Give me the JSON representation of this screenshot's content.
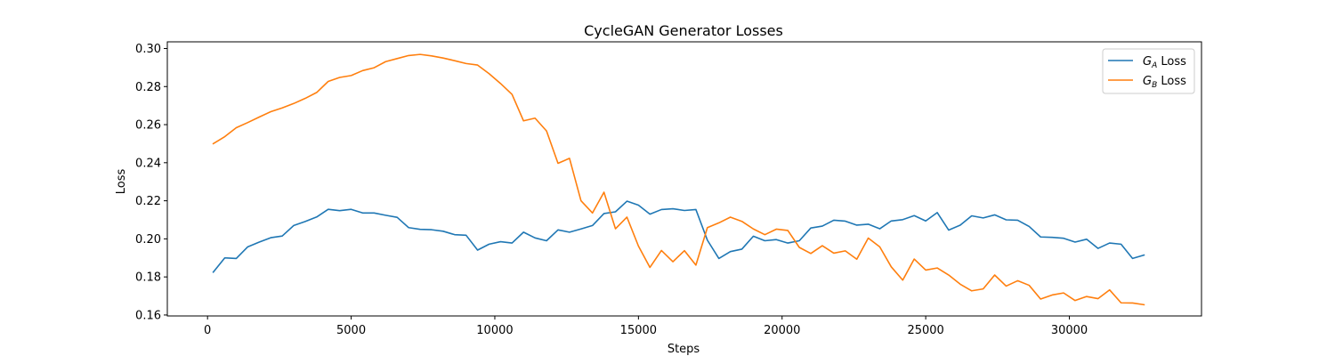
{
  "chart_data": {
    "type": "line",
    "title": "CycleGAN Generator Losses",
    "xlabel": "Steps",
    "ylabel": "Loss",
    "xlim": [
      -1400,
      34600
    ],
    "ylim": [
      0.1595,
      0.3035
    ],
    "xticks": [
      0,
      5000,
      10000,
      15000,
      20000,
      25000,
      30000
    ],
    "yticks": [
      0.16,
      0.18,
      0.2,
      0.22,
      0.24,
      0.26,
      0.28,
      0.3
    ],
    "ytick_labels": [
      "0.16",
      "0.18",
      "0.20",
      "0.22",
      "0.24",
      "0.26",
      "0.28",
      "0.30"
    ],
    "grid": false,
    "legend_position": "top-right",
    "x": [
      200,
      600,
      1000,
      1400,
      1800,
      2200,
      2600,
      3000,
      3400,
      3800,
      4200,
      4600,
      5000,
      5400,
      5800,
      6200,
      6600,
      7000,
      7400,
      7800,
      8200,
      8600,
      9000,
      9400,
      9800,
      10200,
      10600,
      11000,
      11400,
      11800,
      12200,
      12600,
      13000,
      13400,
      13800,
      14200,
      14600,
      15000,
      15400,
      15800,
      16200,
      16600,
      17000,
      17400,
      17800,
      18200,
      18600,
      19000,
      19400,
      19800,
      20200,
      20600,
      21000,
      21400,
      21800,
      22200,
      22600,
      23000,
      23400,
      23800,
      24200,
      24600,
      25000,
      25400,
      25800,
      26200,
      26600,
      27000,
      27400,
      27800,
      28200,
      28600,
      29000,
      29400,
      29800,
      30200,
      30600,
      31000,
      31400,
      31800,
      32200,
      32600
    ],
    "series": [
      {
        "name_main": "G",
        "name_sub": "A",
        "name_rest": " Loss",
        "color": "#1f77b4",
        "values": [
          0.1825,
          0.19,
          0.1897,
          0.1958,
          0.1983,
          0.2006,
          0.2015,
          0.207,
          0.2091,
          0.2115,
          0.2155,
          0.2148,
          0.2155,
          0.2136,
          0.2136,
          0.2124,
          0.2113,
          0.2059,
          0.205,
          0.2048,
          0.204,
          0.2022,
          0.2019,
          0.1941,
          0.1972,
          0.1985,
          0.1978,
          0.2035,
          0.2005,
          0.199,
          0.2047,
          0.2035,
          0.2052,
          0.207,
          0.2133,
          0.2142,
          0.2198,
          0.2177,
          0.213,
          0.2154,
          0.2158,
          0.2149,
          0.2154,
          0.1993,
          0.1897,
          0.1933,
          0.1946,
          0.2014,
          0.199,
          0.1996,
          0.1978,
          0.199,
          0.2057,
          0.2067,
          0.2098,
          0.2093,
          0.2072,
          0.2077,
          0.2053,
          0.2094,
          0.2101,
          0.2122,
          0.2094,
          0.2138,
          0.2046,
          0.2072,
          0.2121,
          0.211,
          0.2126,
          0.21,
          0.2098,
          0.2065,
          0.201,
          0.2008,
          0.2003,
          0.1983,
          0.1998,
          0.195,
          0.1978,
          0.1972,
          0.1897,
          0.1915
        ]
      },
      {
        "name_main": "G",
        "name_sub": "B",
        "name_rest": " Loss",
        "color": "#ff7f0e",
        "values": [
          0.25,
          0.2537,
          0.2584,
          0.2611,
          0.264,
          0.2668,
          0.2688,
          0.2711,
          0.2738,
          0.2769,
          0.2827,
          0.2848,
          0.2858,
          0.2884,
          0.2899,
          0.2931,
          0.2947,
          0.2963,
          0.2969,
          0.2961,
          0.295,
          0.2936,
          0.2921,
          0.2913,
          0.2868,
          0.2816,
          0.2759,
          0.262,
          0.2634,
          0.2567,
          0.2397,
          0.2423,
          0.22,
          0.2136,
          0.2245,
          0.2053,
          0.2114,
          0.1962,
          0.185,
          0.1939,
          0.188,
          0.1938,
          0.1862,
          0.2059,
          0.2084,
          0.2114,
          0.2092,
          0.2052,
          0.2022,
          0.2051,
          0.2044,
          0.1955,
          0.1923,
          0.1964,
          0.1925,
          0.1937,
          0.1893,
          0.2004,
          0.1958,
          0.1853,
          0.1783,
          0.1894,
          0.1836,
          0.1847,
          0.181,
          0.1762,
          0.1727,
          0.1737,
          0.181,
          0.1752,
          0.178,
          0.1756,
          0.1684,
          0.1705,
          0.1716,
          0.1676,
          0.1697,
          0.1686,
          0.1732,
          0.1664,
          0.1663,
          0.1654
        ]
      }
    ]
  }
}
